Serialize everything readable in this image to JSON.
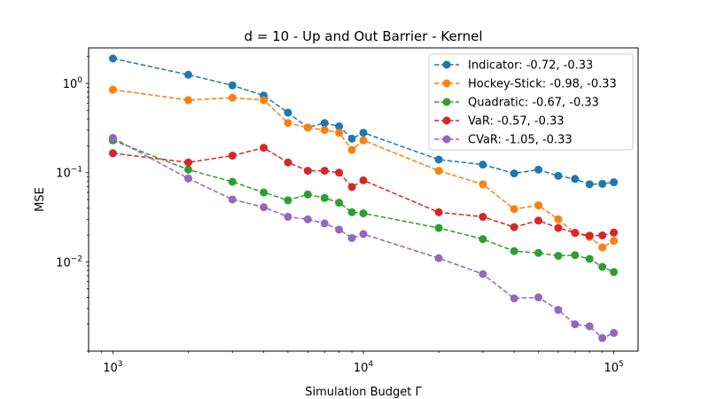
{
  "chart_data": {
    "type": "line",
    "title": "d = 10 - Up and Out Barrier - Kernel",
    "xlabel": "Simulation Budget Γ",
    "ylabel": "MSE",
    "xscale": "log",
    "yscale": "log",
    "xlim": [
      800,
      125000
    ],
    "ylim": [
      0.001,
      2.5
    ],
    "x_ticks": [
      {
        "value": 1000,
        "base": "10",
        "exp": "3"
      },
      {
        "value": 10000,
        "base": "10",
        "exp": "4"
      },
      {
        "value": 100000,
        "base": "10",
        "exp": "5"
      }
    ],
    "y_ticks": [
      {
        "value": 0.01,
        "base": "10",
        "exp": "−2"
      },
      {
        "value": 0.1,
        "base": "10",
        "exp": "−1"
      },
      {
        "value": 1,
        "base": "10",
        "exp": "0"
      }
    ],
    "grid": false,
    "legend_position": "top-right",
    "x": [
      1000,
      2000,
      3000,
      4000,
      5000,
      6000,
      7000,
      8000,
      9000,
      10000,
      20000,
      30000,
      40000,
      50000,
      60000,
      70000,
      80000,
      90000,
      100000
    ],
    "series": [
      {
        "name": "Indicator: -0.72, -0.33",
        "color": "#1f77b4",
        "values": [
          1.9,
          1.25,
          0.95,
          0.73,
          0.47,
          0.32,
          0.36,
          0.33,
          0.24,
          0.28,
          0.14,
          0.123,
          0.098,
          0.108,
          0.092,
          0.085,
          0.074,
          0.075,
          0.078
        ]
      },
      {
        "name": "Hockey-Stick: -0.98, -0.33",
        "color": "#ff7f0e",
        "values": [
          0.85,
          0.65,
          0.69,
          0.65,
          0.36,
          0.32,
          0.3,
          0.28,
          0.18,
          0.23,
          0.105,
          0.074,
          0.039,
          0.043,
          0.03,
          0.021,
          0.019,
          0.0145,
          0.0172
        ]
      },
      {
        "name": "Quadratic: -0.67, -0.33",
        "color": "#2ca02c",
        "values": [
          0.23,
          0.108,
          0.079,
          0.06,
          0.049,
          0.057,
          0.052,
          0.046,
          0.036,
          0.035,
          0.024,
          0.018,
          0.0132,
          0.0126,
          0.0117,
          0.0119,
          0.0108,
          0.0088,
          0.0077
        ]
      },
      {
        "name": "VaR: -0.57, -0.33",
        "color": "#d62728",
        "values": [
          0.165,
          0.13,
          0.155,
          0.19,
          0.13,
          0.105,
          0.105,
          0.1,
          0.069,
          0.082,
          0.036,
          0.032,
          0.0245,
          0.029,
          0.024,
          0.0212,
          0.0197,
          0.0198,
          0.0213
        ]
      },
      {
        "name": "CVaR: -1.05, -0.33",
        "color": "#9467bd",
        "values": [
          0.245,
          0.086,
          0.05,
          0.041,
          0.032,
          0.03,
          0.027,
          0.023,
          0.0185,
          0.0205,
          0.011,
          0.0073,
          0.0039,
          0.004,
          0.0029,
          0.002,
          0.0019,
          0.0014,
          0.0016
        ]
      }
    ]
  }
}
